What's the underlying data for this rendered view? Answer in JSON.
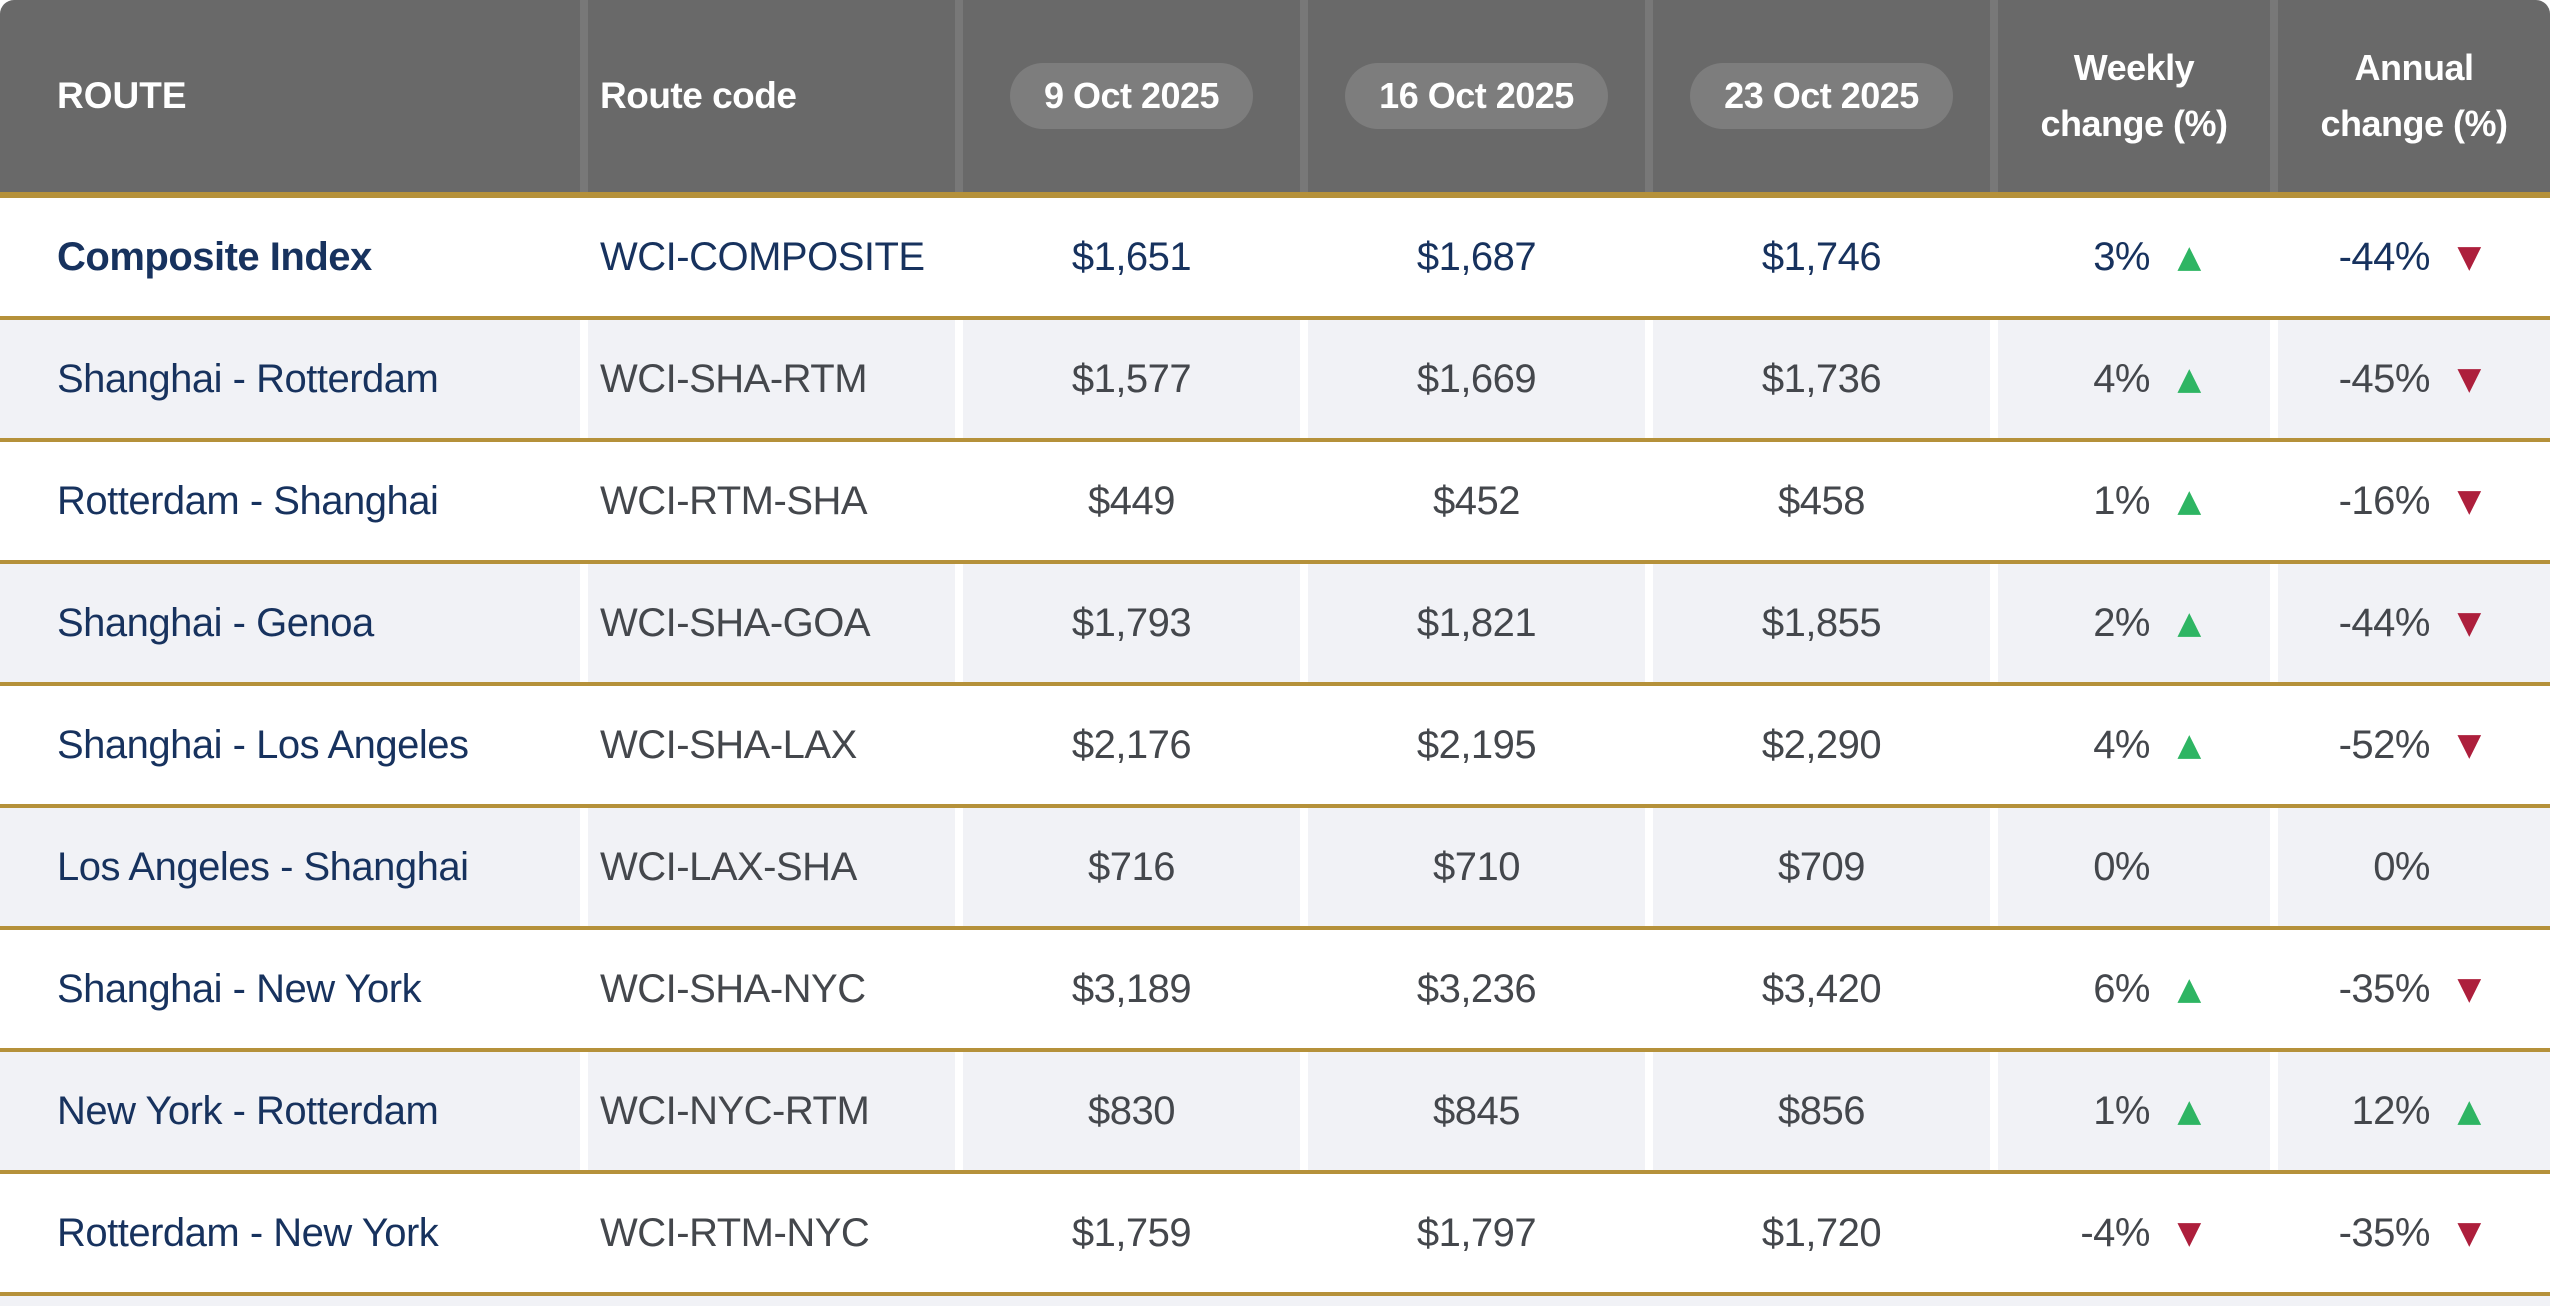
{
  "colors": {
    "header_bg": "#696969",
    "pill_bg": "#7d7d7d",
    "header_text": "#ffffff",
    "gold_border": "#b5913a",
    "navy_text": "#17325e",
    "charcoal_text": "#44474c",
    "row_bg": "#ffffff",
    "row_alt_bg": "#f1f2f6",
    "up_green": "#2eb563",
    "down_red": "#ad1f3c"
  },
  "icons": {
    "up": "▲",
    "down": "▼"
  },
  "header": {
    "route": "ROUTE",
    "route_code": "Route code",
    "dates": [
      "9 Oct 2025",
      "16 Oct 2025",
      "23 Oct 2025"
    ],
    "weekly_line1": "Weekly",
    "weekly_line2": "change (%)",
    "annual_line1": "Annual",
    "annual_line2": "change (%)"
  },
  "rows": [
    {
      "route": "Composite Index",
      "code": "WCI-COMPOSITE",
      "prices": [
        "$1,651",
        "$1,687",
        "$1,746"
      ],
      "weekly": {
        "value": "3%",
        "dir": "up"
      },
      "annual": {
        "value": "-44%",
        "dir": "down"
      },
      "emphasis": true
    },
    {
      "route": "Shanghai - Rotterdam",
      "code": "WCI-SHA-RTM",
      "prices": [
        "$1,577",
        "$1,669",
        "$1,736"
      ],
      "weekly": {
        "value": "4%",
        "dir": "up"
      },
      "annual": {
        "value": "-45%",
        "dir": "down"
      },
      "emphasis": false
    },
    {
      "route": "Rotterdam - Shanghai",
      "code": "WCI-RTM-SHA",
      "prices": [
        "$449",
        "$452",
        "$458"
      ],
      "weekly": {
        "value": "1%",
        "dir": "up"
      },
      "annual": {
        "value": "-16%",
        "dir": "down"
      },
      "emphasis": false
    },
    {
      "route": "Shanghai - Genoa",
      "code": "WCI-SHA-GOA",
      "prices": [
        "$1,793",
        "$1,821",
        "$1,855"
      ],
      "weekly": {
        "value": "2%",
        "dir": "up"
      },
      "annual": {
        "value": "-44%",
        "dir": "down"
      },
      "emphasis": false
    },
    {
      "route": "Shanghai - Los Angeles",
      "code": "WCI-SHA-LAX",
      "prices": [
        "$2,176",
        "$2,195",
        "$2,290"
      ],
      "weekly": {
        "value": "4%",
        "dir": "up"
      },
      "annual": {
        "value": "-52%",
        "dir": "down"
      },
      "emphasis": false
    },
    {
      "route": "Los Angeles - Shanghai",
      "code": "WCI-LAX-SHA",
      "prices": [
        "$716",
        "$710",
        "$709"
      ],
      "weekly": {
        "value": "0%",
        "dir": "none"
      },
      "annual": {
        "value": "0%",
        "dir": "none"
      },
      "emphasis": false
    },
    {
      "route": "Shanghai - New York",
      "code": "WCI-SHA-NYC",
      "prices": [
        "$3,189",
        "$3,236",
        "$3,420"
      ],
      "weekly": {
        "value": "6%",
        "dir": "up"
      },
      "annual": {
        "value": "-35%",
        "dir": "down"
      },
      "emphasis": false
    },
    {
      "route": "New York - Rotterdam",
      "code": "WCI-NYC-RTM",
      "prices": [
        "$830",
        "$845",
        "$856"
      ],
      "weekly": {
        "value": "1%",
        "dir": "up"
      },
      "annual": {
        "value": "12%",
        "dir": "up"
      },
      "emphasis": false
    },
    {
      "route": "Rotterdam - New York",
      "code": "WCI-RTM-NYC",
      "prices": [
        "$1,759",
        "$1,797",
        "$1,720"
      ],
      "weekly": {
        "value": "-4%",
        "dir": "down"
      },
      "annual": {
        "value": "-35%",
        "dir": "down"
      },
      "emphasis": false
    }
  ],
  "chart_data": {
    "type": "table",
    "columns": [
      "ROUTE",
      "Route code",
      "9 Oct 2025",
      "16 Oct 2025",
      "23 Oct 2025",
      "Weekly change (%)",
      "Annual change (%)"
    ],
    "rows": [
      [
        "Composite Index",
        "WCI-COMPOSITE",
        1651,
        1687,
        1746,
        3,
        -44
      ],
      [
        "Shanghai - Rotterdam",
        "WCI-SHA-RTM",
        1577,
        1669,
        1736,
        4,
        -45
      ],
      [
        "Rotterdam - Shanghai",
        "WCI-RTM-SHA",
        449,
        452,
        458,
        1,
        -16
      ],
      [
        "Shanghai - Genoa",
        "WCI-SHA-GOA",
        1793,
        1821,
        1855,
        2,
        -44
      ],
      [
        "Shanghai - Los Angeles",
        "WCI-SHA-LAX",
        2176,
        2195,
        2290,
        4,
        -52
      ],
      [
        "Los Angeles - Shanghai",
        "WCI-LAX-SHA",
        716,
        710,
        709,
        0,
        0
      ],
      [
        "Shanghai - New York",
        "WCI-SHA-NYC",
        3189,
        3236,
        3420,
        6,
        -35
      ],
      [
        "New York - Rotterdam",
        "WCI-NYC-RTM",
        830,
        845,
        856,
        1,
        12
      ],
      [
        "Rotterdam - New York",
        "WCI-RTM-NYC",
        1759,
        1797,
        1720,
        -4,
        -35
      ]
    ]
  }
}
